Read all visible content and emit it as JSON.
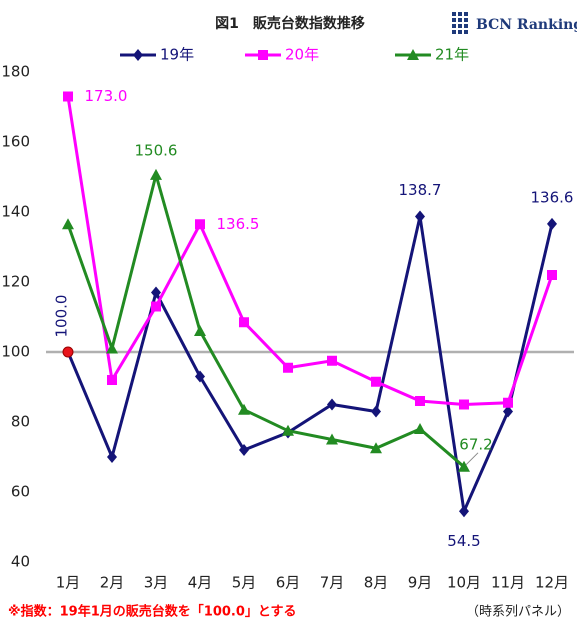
{
  "chart_data": {
    "type": "line",
    "title": "図1　販売台数指数推移",
    "logo": "BCN Ranking",
    "footnote": "※指数：19年1月の販売台数を「100.0」とする",
    "note": "（時系列パネル）",
    "categories": [
      "1月",
      "2月",
      "3月",
      "4月",
      "5月",
      "6月",
      "7月",
      "8月",
      "9月",
      "10月",
      "11月",
      "12月"
    ],
    "series": [
      {
        "name": "19年",
        "color": "#141478",
        "marker": "diamond",
        "values": [
          100,
          70,
          117,
          93,
          72,
          77,
          85,
          83,
          138.7,
          54.5,
          83,
          136.6
        ],
        "value_labels": [
          "100.0",
          null,
          null,
          null,
          null,
          null,
          null,
          null,
          "138.7",
          "54.5",
          null,
          "136.6"
        ]
      },
      {
        "name": "20年",
        "color": "#ff00ff",
        "marker": "square",
        "values": [
          173,
          92,
          113,
          136.5,
          108.5,
          95.5,
          97.5,
          91.5,
          86,
          85,
          85.5,
          122
        ],
        "value_labels": [
          "173.0",
          null,
          null,
          "136.5",
          null,
          null,
          null,
          null,
          null,
          null,
          null,
          null
        ]
      },
      {
        "name": "21年",
        "color": "#228b22",
        "marker": "triangle",
        "values": [
          136.5,
          101,
          150.6,
          106,
          83.5,
          77.5,
          75,
          72.5,
          78,
          67.2,
          null,
          null
        ],
        "value_labels": [
          null,
          null,
          "150.6",
          null,
          null,
          null,
          null,
          null,
          null,
          "67.2",
          null,
          null
        ]
      }
    ],
    "ylim": [
      40,
      180
    ],
    "yticks": [
      40,
      60,
      80,
      100,
      120,
      140,
      160,
      180
    ],
    "reference_line": 100,
    "legend": "top"
  }
}
